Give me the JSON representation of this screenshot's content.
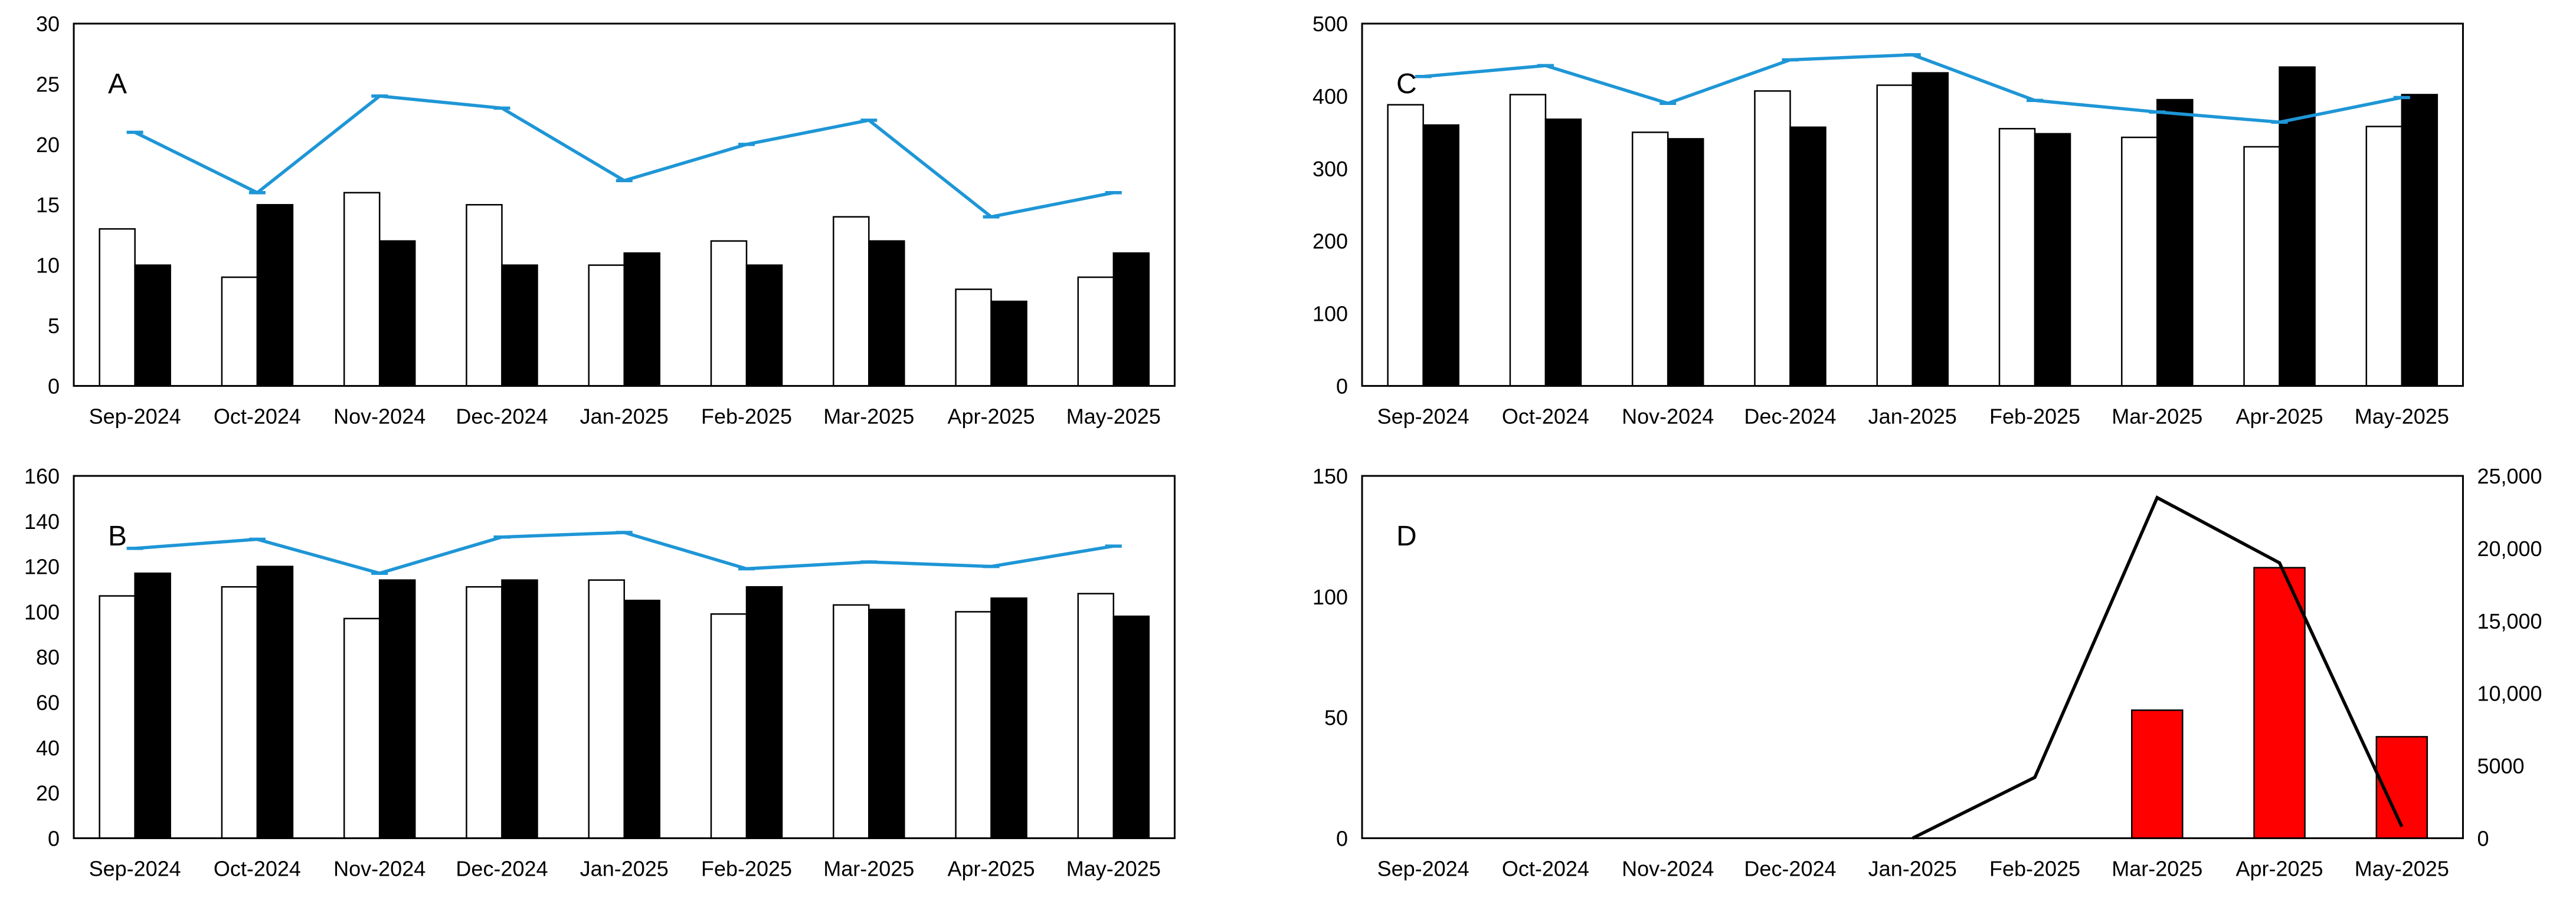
{
  "colors": {
    "background": "#ffffff",
    "axis_and_border": "#000000",
    "bar_white_fill": "#ffffff",
    "bar_black_fill": "#000000",
    "bar_red_fill": "#ff0000",
    "line_blue": "#1e96d6",
    "line_black": "#000000"
  },
  "categories": [
    "Sep-2024",
    "Oct-2024",
    "Nov-2024",
    "Dec-2024",
    "Jan-2025",
    "Feb-2025",
    "Mar-2025",
    "Apr-2025",
    "May-2025"
  ],
  "chart_data": [
    {
      "type": "bar",
      "panel_label": "A",
      "categories": [
        "Sep-2024",
        "Oct-2024",
        "Nov-2024",
        "Dec-2024",
        "Jan-2025",
        "Feb-2025",
        "Mar-2025",
        "Apr-2025",
        "May-2025"
      ],
      "series": [
        {
          "name": "white-bars",
          "type": "bar",
          "axis": "left",
          "color": "#ffffff",
          "values": [
            13,
            9,
            16,
            15,
            10,
            12,
            14,
            8,
            9
          ]
        },
        {
          "name": "black-bars",
          "type": "bar",
          "axis": "left",
          "color": "#000000",
          "values": [
            10,
            15,
            12,
            10,
            11,
            10,
            12,
            7,
            11
          ]
        },
        {
          "name": "blue-line",
          "type": "line",
          "axis": "left",
          "color": "#1e96d6",
          "markers": true,
          "values": [
            21,
            16,
            24,
            23,
            17,
            20,
            22,
            14,
            16
          ]
        }
      ],
      "xlabel": "",
      "ylabel": "",
      "y_left": {
        "lim": [
          0,
          30
        ],
        "ticks": [
          0,
          5,
          10,
          15,
          20,
          25,
          30
        ],
        "labels": [
          "0",
          "5",
          "10",
          "15",
          "20",
          "25",
          "30"
        ]
      },
      "grid": false,
      "legend": false
    },
    {
      "type": "bar",
      "panel_label": "C",
      "categories": [
        "Sep-2024",
        "Oct-2024",
        "Nov-2024",
        "Dec-2024",
        "Jan-2025",
        "Feb-2025",
        "Mar-2025",
        "Apr-2025",
        "May-2025"
      ],
      "series": [
        {
          "name": "white-bars",
          "type": "bar",
          "axis": "left",
          "color": "#ffffff",
          "values": [
            388,
            402,
            350,
            407,
            415,
            355,
            343,
            330,
            358
          ]
        },
        {
          "name": "black-bars",
          "type": "bar",
          "axis": "left",
          "color": "#000000",
          "values": [
            360,
            368,
            341,
            357,
            432,
            348,
            395,
            440,
            402
          ]
        },
        {
          "name": "blue-line",
          "type": "line",
          "axis": "left",
          "color": "#1e96d6",
          "markers": true,
          "values": [
            427,
            442,
            390,
            450,
            457,
            394,
            378,
            364,
            398
          ]
        }
      ],
      "xlabel": "",
      "ylabel": "",
      "y_left": {
        "lim": [
          0,
          500
        ],
        "ticks": [
          0,
          100,
          200,
          300,
          400,
          500
        ],
        "labels": [
          "0",
          "100",
          "200",
          "300",
          "400",
          "500"
        ]
      },
      "grid": false,
      "legend": false
    },
    {
      "type": "bar",
      "panel_label": "B",
      "categories": [
        "Sep-2024",
        "Oct-2024",
        "Nov-2024",
        "Dec-2024",
        "Jan-2025",
        "Feb-2025",
        "Mar-2025",
        "Apr-2025",
        "May-2025"
      ],
      "series": [
        {
          "name": "white-bars",
          "type": "bar",
          "axis": "left",
          "color": "#ffffff",
          "values": [
            107,
            111,
            97,
            111,
            114,
            99,
            103,
            100,
            108
          ]
        },
        {
          "name": "black-bars",
          "type": "bar",
          "axis": "left",
          "color": "#000000",
          "values": [
            117,
            120,
            114,
            114,
            105,
            111,
            101,
            106,
            98
          ]
        },
        {
          "name": "blue-line",
          "type": "line",
          "axis": "left",
          "color": "#1e96d6",
          "markers": true,
          "values": [
            128,
            132,
            117,
            133,
            135,
            119,
            122,
            120,
            129
          ]
        }
      ],
      "xlabel": "",
      "ylabel": "",
      "y_left": {
        "lim": [
          0,
          160
        ],
        "ticks": [
          0,
          20,
          40,
          60,
          80,
          100,
          120,
          140,
          160
        ],
        "labels": [
          "0",
          "20",
          "40",
          "60",
          "80",
          "100",
          "120",
          "140",
          "160"
        ]
      },
      "grid": false,
      "legend": false
    },
    {
      "type": "bar",
      "panel_label": "D",
      "categories": [
        "Sep-2024",
        "Oct-2024",
        "Nov-2024",
        "Dec-2024",
        "Jan-2025",
        "Feb-2025",
        "Mar-2025",
        "Apr-2025",
        "May-2025"
      ],
      "series": [
        {
          "name": "red-bars",
          "type": "bar",
          "axis": "left",
          "color": "#ff0000",
          "values": [
            null,
            null,
            null,
            null,
            null,
            null,
            53,
            112,
            42
          ]
        },
        {
          "name": "black-line",
          "type": "line",
          "axis": "right",
          "color": "#000000",
          "markers": false,
          "values": [
            null,
            null,
            null,
            null,
            0,
            4200,
            23500,
            19000,
            800
          ]
        }
      ],
      "xlabel": "",
      "ylabel": "",
      "y_left": {
        "lim": [
          0,
          150
        ],
        "ticks": [
          0,
          50,
          100,
          150
        ],
        "labels": [
          "0",
          "50",
          "100",
          "150"
        ]
      },
      "y_right": {
        "lim": [
          0,
          25000
        ],
        "ticks": [
          0,
          5000,
          10000,
          15000,
          20000,
          25000
        ],
        "labels": [
          "0",
          "5000",
          "10,000",
          "15,000",
          "20,000",
          "25,000"
        ]
      },
      "grid": false,
      "legend": false
    }
  ]
}
